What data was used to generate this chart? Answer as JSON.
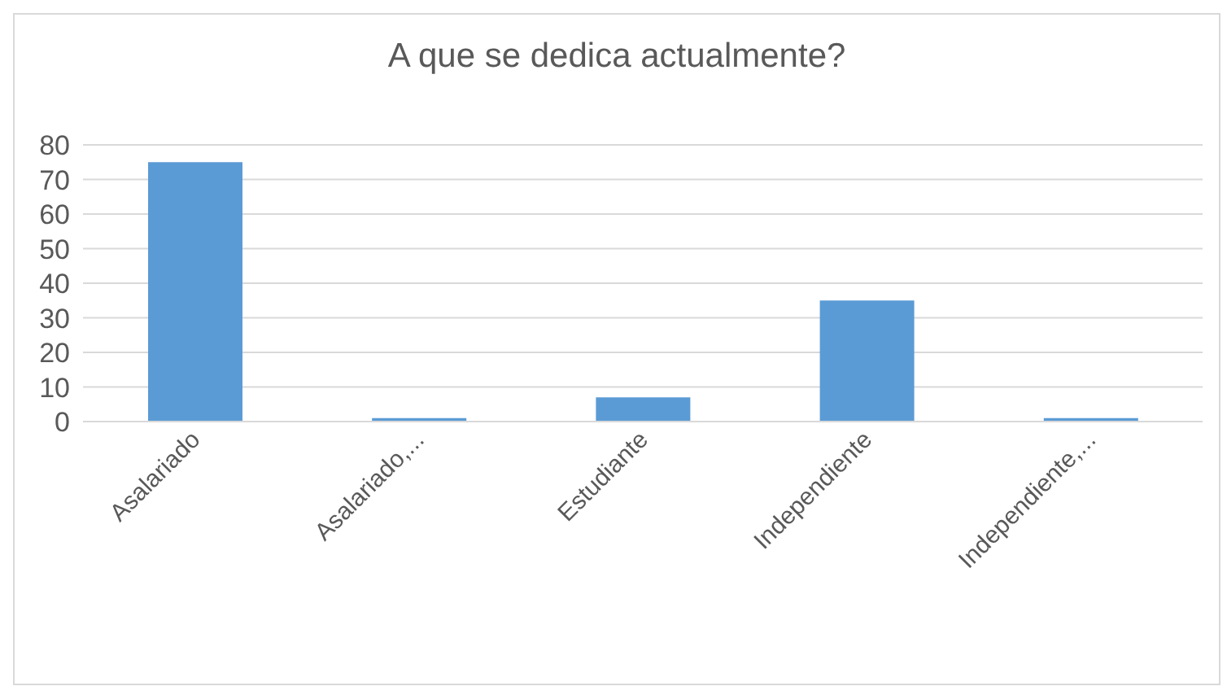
{
  "chart_data": {
    "type": "bar",
    "title": "A que se dedica actualmente?",
    "categories": [
      "Asalariado",
      "Asalariado,...",
      "Estudiante",
      "Independiente",
      "Independiente,..."
    ],
    "values": [
      75,
      1,
      7,
      35,
      1
    ],
    "color": "#5b9bd5",
    "ylim": [
      0,
      80
    ],
    "yticks": [
      0,
      10,
      20,
      30,
      40,
      50,
      60,
      70,
      80
    ],
    "grid": "y"
  }
}
